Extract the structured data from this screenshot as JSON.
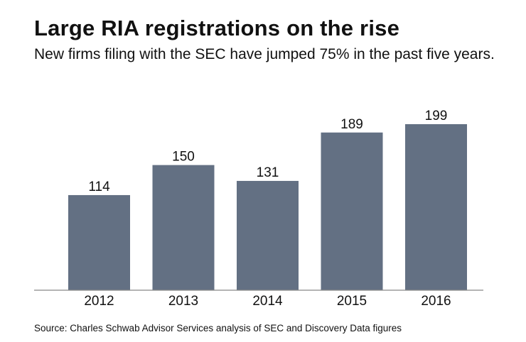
{
  "chart_data": {
    "type": "bar",
    "title": "Large RIA registrations on the rise",
    "subtitle": "New firms filing with the SEC have jumped 75% in the past five years.",
    "categories": [
      "2012",
      "2013",
      "2014",
      "2015",
      "2016"
    ],
    "values": [
      114,
      150,
      131,
      189,
      199
    ],
    "data_labels": [
      "114",
      "150",
      "131",
      "189",
      "199"
    ],
    "xlabel": "",
    "ylabel": "",
    "ylim": [
      0,
      199
    ],
    "grid": false,
    "bar_color": "#637083",
    "source": "Source: Charles Schwab Advisor Services analysis of SEC and Discovery Data figures"
  }
}
